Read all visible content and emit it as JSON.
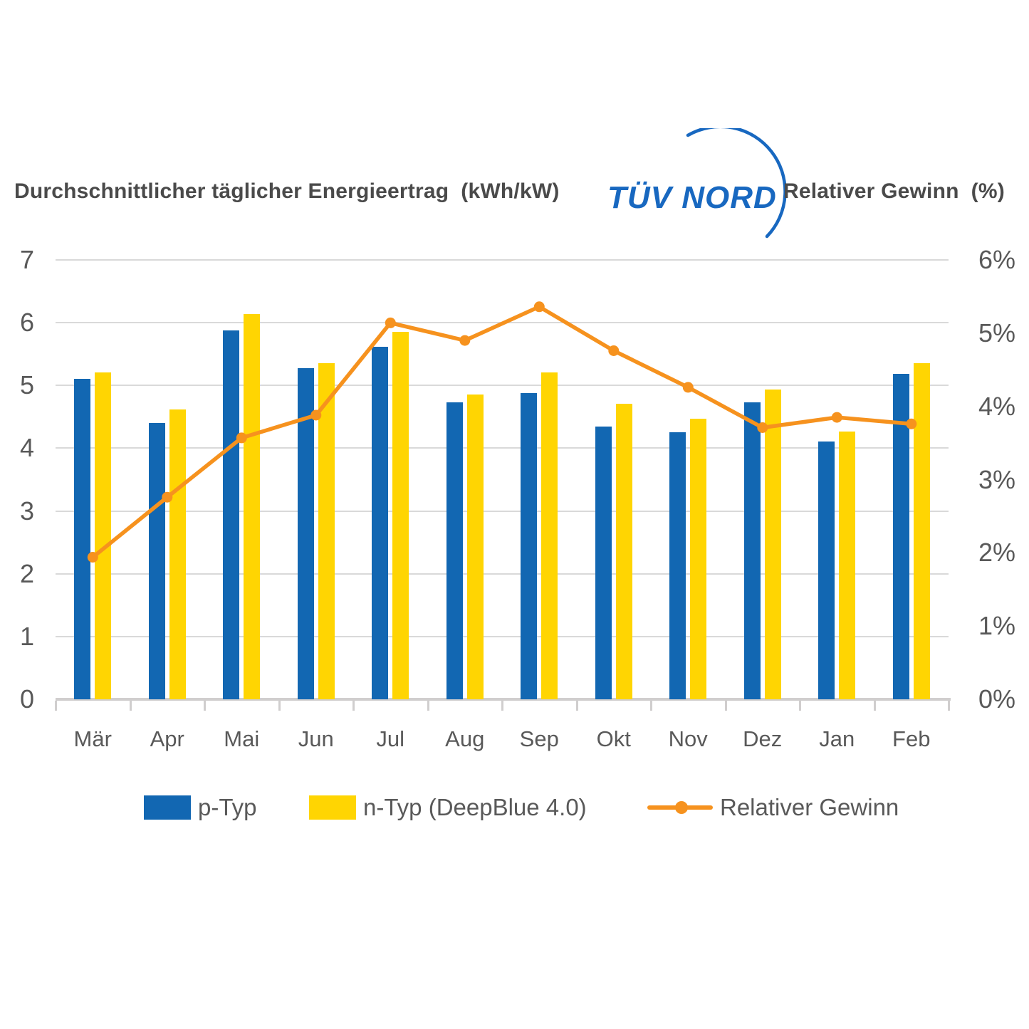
{
  "header": {
    "left_title": "Durchschnittlicher täglicher Energieertrag  (kWh/kW)",
    "right_title": "Relativer Gewinn  (%)",
    "logo_text": "TÜV NORD"
  },
  "chart_data": {
    "type": "bar",
    "subtype": "grouped-bars-with-line",
    "categories": [
      "Mär",
      "Apr",
      "Mai",
      "Jun",
      "Jul",
      "Aug",
      "Sep",
      "Okt",
      "Nov",
      "Dez",
      "Jan",
      "Feb"
    ],
    "series": [
      {
        "name": "p-Typ",
        "type": "bar",
        "axis": "left",
        "values": [
          5.11,
          4.4,
          5.88,
          5.28,
          5.62,
          4.73,
          4.88,
          4.34,
          4.25,
          4.73,
          4.11,
          5.19
        ]
      },
      {
        "name": "n-Typ (DeepBlue 4.0)",
        "type": "bar",
        "axis": "left",
        "values": [
          5.21,
          4.62,
          6.14,
          5.36,
          5.85,
          4.86,
          5.21,
          4.71,
          4.47,
          4.93,
          4.27,
          5.36
        ]
      },
      {
        "name": "Relativer Gewinn",
        "type": "line",
        "axis": "right",
        "unit": "%",
        "values": [
          1.94,
          2.76,
          3.57,
          3.88,
          5.14,
          4.9,
          5.36,
          4.76,
          4.26,
          3.71,
          3.85,
          3.76
        ]
      }
    ],
    "left_axis": {
      "title": "Durchschnittlicher täglicher Energieertrag (kWh/kW)",
      "min": 0,
      "max": 7,
      "ticks": [
        "0",
        "1",
        "2",
        "3",
        "4",
        "5",
        "6",
        "7"
      ]
    },
    "right_axis": {
      "title": "Relativer Gewinn (%)",
      "min": 0,
      "max": 6,
      "ticks": [
        "0%",
        "1%",
        "2%",
        "3%",
        "4%",
        "5%",
        "6%"
      ]
    },
    "grid": true,
    "legend_position": "bottom"
  },
  "legend": {
    "items": [
      {
        "label": "p-Typ",
        "swatch": "bar",
        "color": "#1267b2"
      },
      {
        "label": "n-Typ (DeepBlue 4.0)",
        "swatch": "bar",
        "color": "#ffd502"
      },
      {
        "label": "Relativer Gewinn",
        "swatch": "line-dot",
        "color": "#f6921e"
      }
    ]
  },
  "colors": {
    "bar_blue": "#1267b2",
    "bar_yellow": "#ffd502",
    "line_orange": "#f6921e",
    "logo_blue": "#1868c0",
    "axis_text": "#595959",
    "title_text": "#4a4a4a",
    "gridline": "#d9d9d9",
    "baseline": "#d0cece"
  }
}
